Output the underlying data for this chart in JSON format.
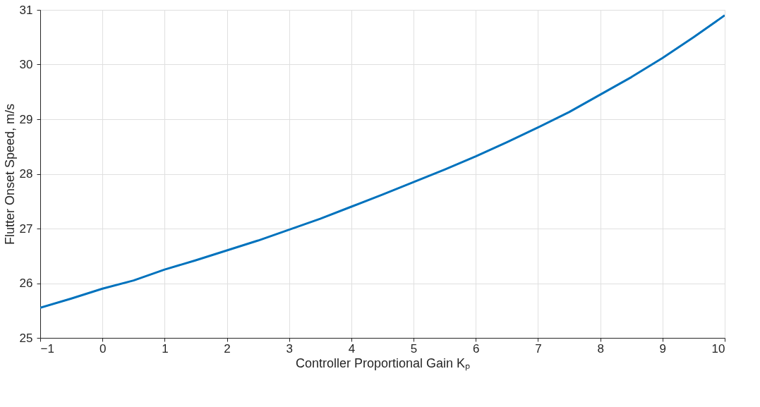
{
  "chart_data": {
    "type": "line",
    "xlabel": "Controller Proportional Gain Kₚ",
    "ylabel": "Flutter Onset Speed, m/s",
    "x": [
      -1,
      -0.5,
      0,
      0.5,
      1,
      1.5,
      2,
      2.5,
      3,
      3.5,
      4,
      4.5,
      5,
      5.5,
      6,
      6.5,
      7,
      7.5,
      8,
      8.5,
      9,
      9.5,
      10
    ],
    "series": [
      {
        "color": "#0072bd",
        "values": [
          25.55,
          25.72,
          25.9,
          26.05,
          26.25,
          26.42,
          26.6,
          26.78,
          26.98,
          27.18,
          27.4,
          27.62,
          27.85,
          28.08,
          28.32,
          28.58,
          28.85,
          29.13,
          29.45,
          29.77,
          30.12,
          30.5,
          30.9
        ]
      }
    ],
    "xlim": [
      -1,
      10
    ],
    "xticks": [
      -1,
      0,
      1,
      2,
      3,
      4,
      5,
      6,
      7,
      8,
      9,
      10
    ],
    "ylim": [
      25,
      31
    ],
    "yticks": [
      25,
      26,
      27,
      28,
      29,
      30,
      31
    ],
    "grid": true,
    "marker": "none",
    "line_style": "solid"
  }
}
